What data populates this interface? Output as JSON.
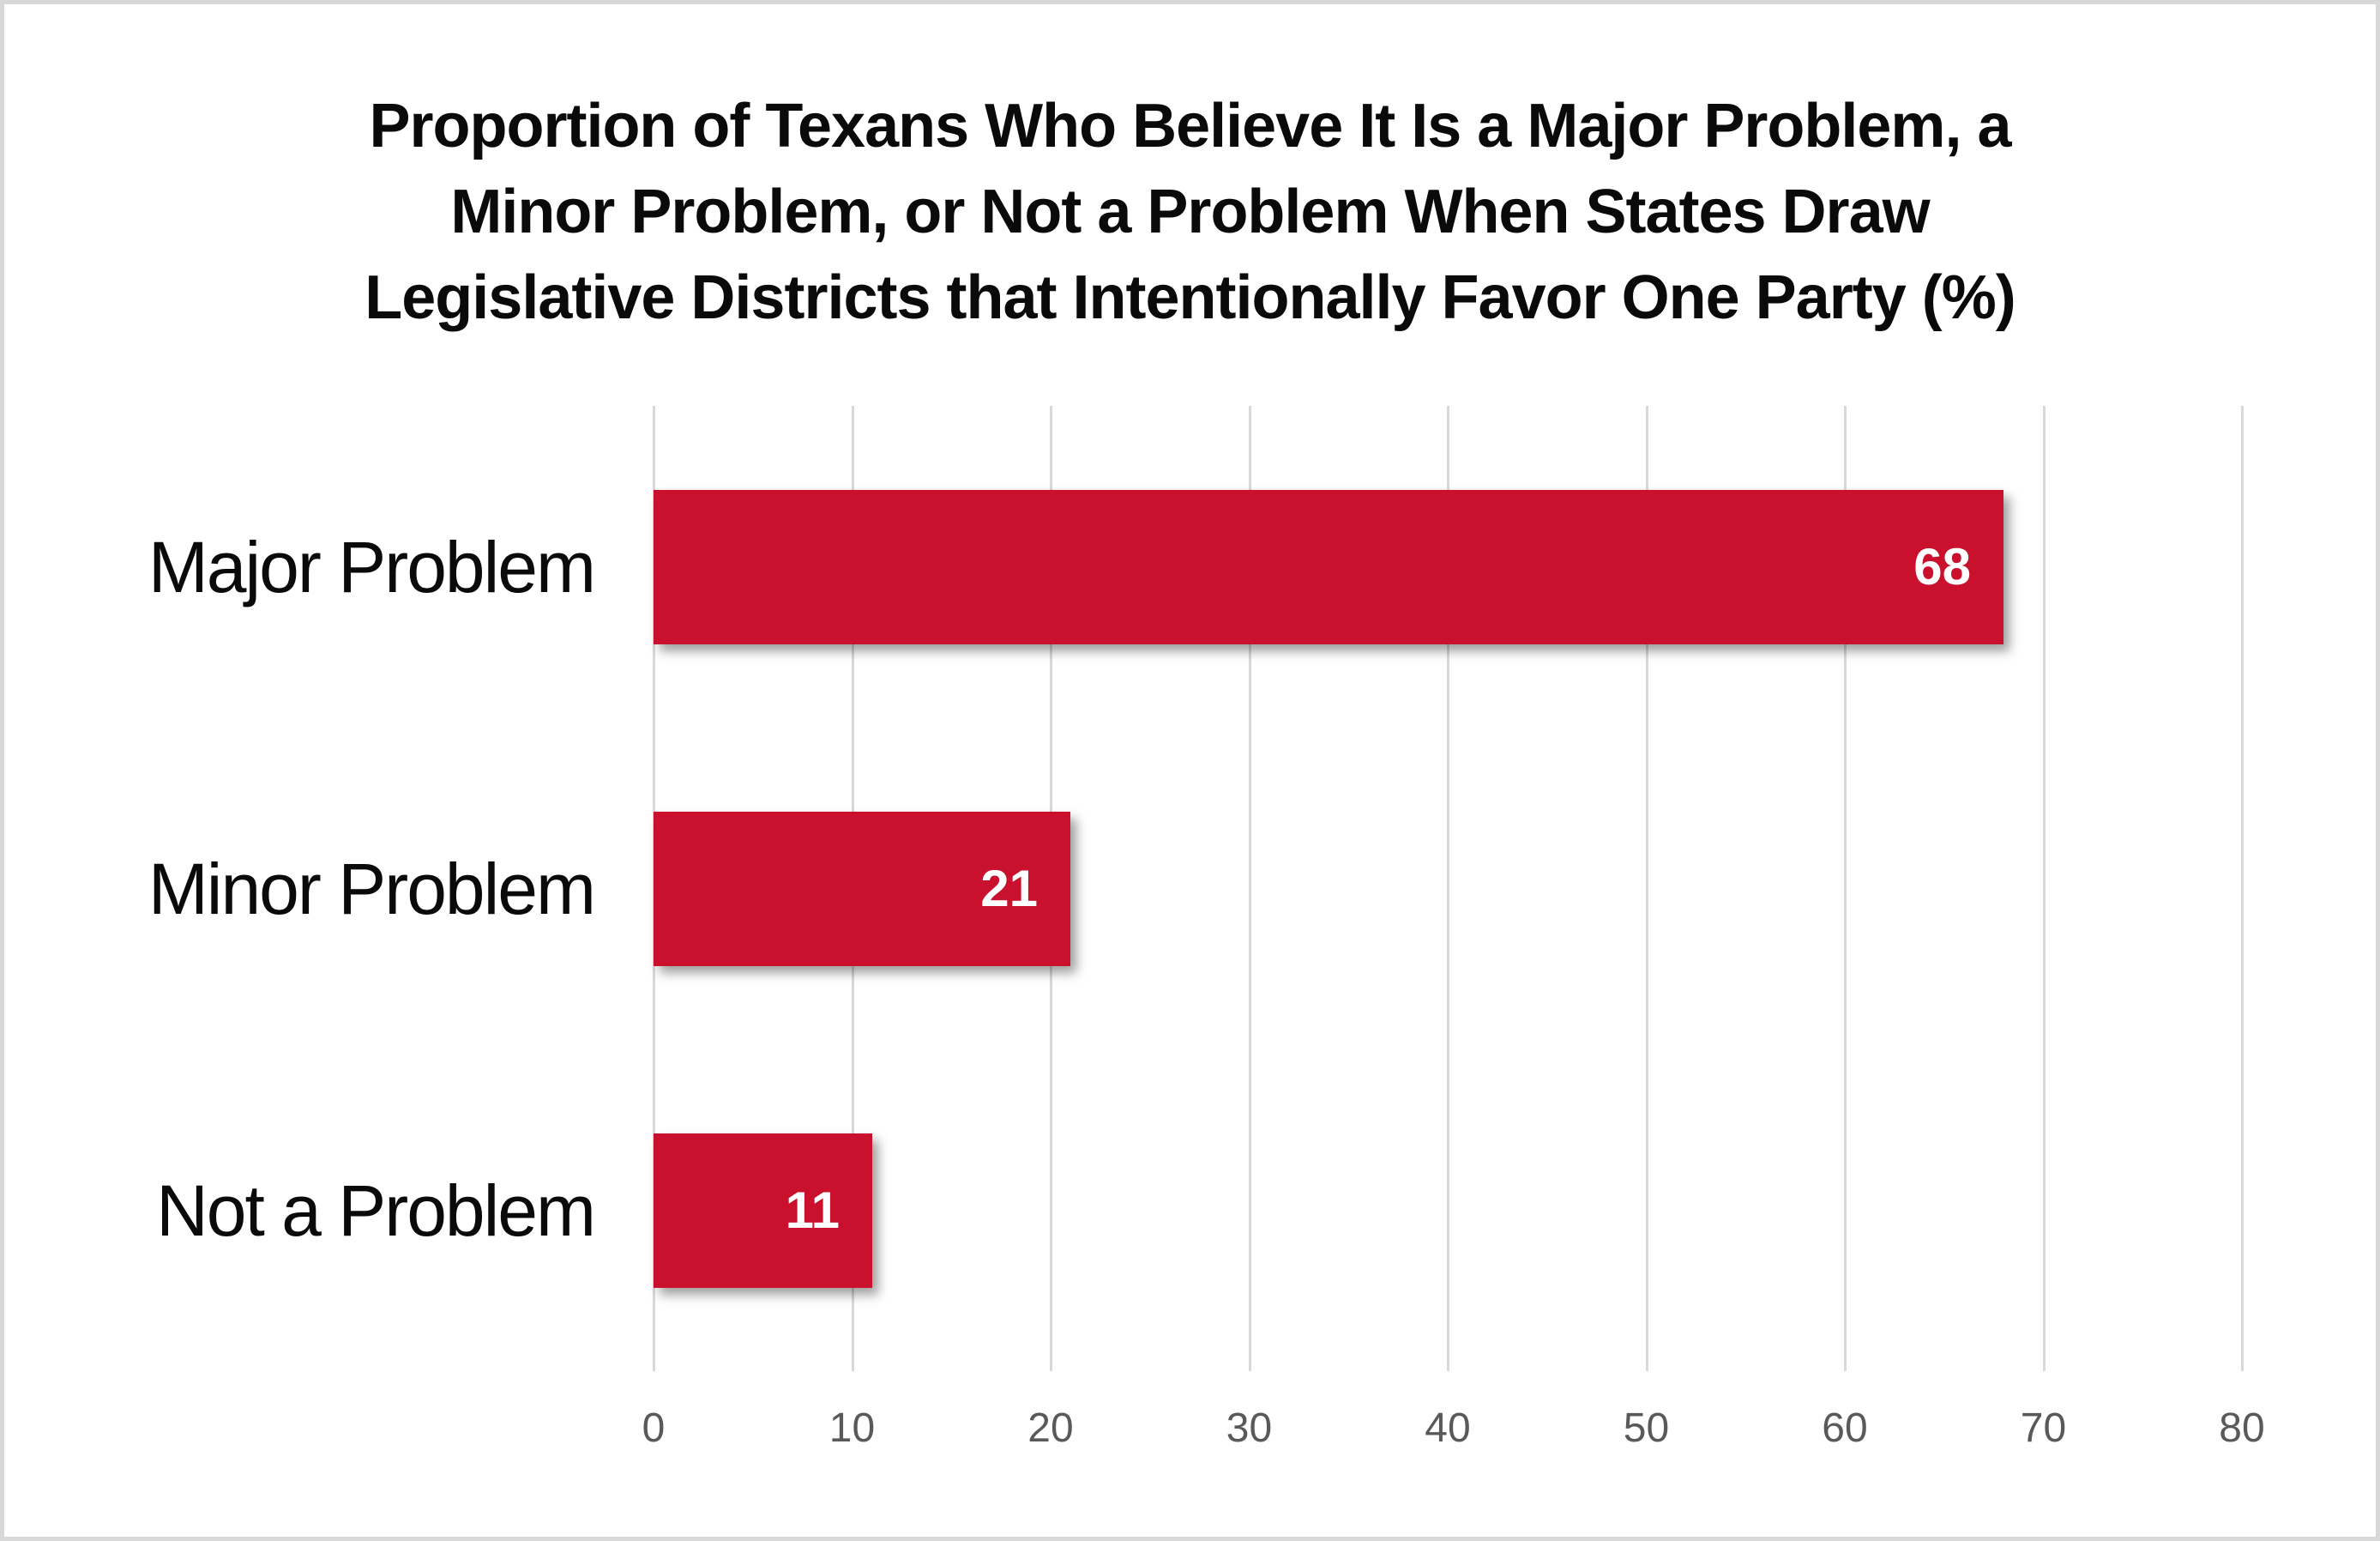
{
  "chart_data": {
    "type": "bar",
    "orientation": "horizontal",
    "title": "Proportion of Texans Who Believe It Is a Major Problem, a Minor Problem, or Not a Problem When States Draw Legislative Districts that Intentionally Favor One Party (%)",
    "title_lines": [
      "Proportion of Texans Who Believe It Is a Major Problem, a",
      "Minor Problem, or Not a Problem When States Draw",
      "Legislative Districts that Intentionally Favor One Party (%)"
    ],
    "categories": [
      "Major Problem",
      "Minor Problem",
      "Not a Problem"
    ],
    "values": [
      68,
      21,
      11
    ],
    "value_labels": [
      "68",
      "21",
      "11"
    ],
    "xlim": [
      0,
      80
    ],
    "x_ticks": [
      0,
      10,
      20,
      30,
      40,
      50,
      60,
      70,
      80
    ],
    "grid": true,
    "legend": "none",
    "colors": {
      "bar": "#c9112d",
      "value_label": "#ffffff",
      "tick_label": "#595959",
      "gridline": "#d9d9d9",
      "title": "#0a0a0a",
      "category_label": "#0a0a0a",
      "frame_border": "#d8d8d8",
      "background": "#ffffff"
    }
  }
}
